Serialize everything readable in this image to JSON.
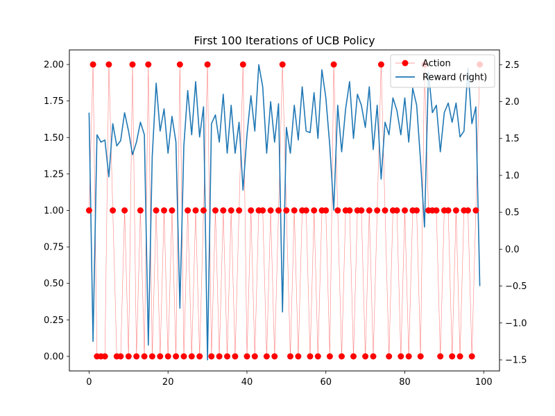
{
  "chart_data": {
    "type": "line",
    "title": "First 100 Iterations of UCB Policy",
    "xlabel": "",
    "ylabel_left": "",
    "ylabel_right": "",
    "xlim": [
      -5,
      104
    ],
    "ylim_left": [
      -0.1,
      2.1
    ],
    "ylim_right": [
      -1.65,
      2.7
    ],
    "x_ticks": [
      0,
      20,
      40,
      60,
      80,
      100
    ],
    "y_ticks_left": [
      0.0,
      0.25,
      0.5,
      0.75,
      1.0,
      1.25,
      1.5,
      1.75,
      2.0
    ],
    "y_ticks_left_labels": [
      "0.00",
      "0.25",
      "0.50",
      "0.75",
      "1.00",
      "1.25",
      "1.50",
      "1.75",
      "2.00"
    ],
    "y_ticks_right": [
      -1.5,
      -1.0,
      -0.5,
      0.0,
      0.5,
      1.0,
      1.5,
      2.0,
      2.5
    ],
    "y_ticks_right_labels": [
      "−1.5",
      "−1.0",
      "−0.5",
      "0.0",
      "0.5",
      "1.0",
      "1.5",
      "2.0",
      "2.5"
    ],
    "grid": false,
    "legend_position": "top-right",
    "series": [
      {
        "name": "Action",
        "axis": "left",
        "color": "#ff0000",
        "style": "line with circle markers",
        "x": [
          0,
          1,
          2,
          3,
          4,
          5,
          6,
          7,
          8,
          9,
          10,
          11,
          12,
          13,
          14,
          15,
          16,
          17,
          18,
          19,
          20,
          21,
          22,
          23,
          24,
          25,
          26,
          27,
          28,
          29,
          30,
          31,
          32,
          33,
          34,
          35,
          36,
          37,
          38,
          39,
          40,
          41,
          42,
          43,
          44,
          45,
          46,
          47,
          48,
          49,
          50,
          51,
          52,
          53,
          54,
          55,
          56,
          57,
          58,
          59,
          60,
          61,
          62,
          63,
          64,
          65,
          66,
          67,
          68,
          69,
          70,
          71,
          72,
          73,
          74,
          75,
          76,
          77,
          78,
          79,
          80,
          81,
          82,
          83,
          84,
          85,
          86,
          87,
          88,
          89,
          90,
          91,
          92,
          93,
          94,
          95,
          96,
          97,
          98,
          99
        ],
        "values": [
          1,
          2,
          0,
          0,
          0,
          2,
          1,
          0,
          0,
          1,
          0,
          2,
          0,
          1,
          0,
          2,
          0,
          1,
          0,
          1,
          0,
          1,
          0,
          2,
          0,
          1,
          0,
          1,
          0,
          1,
          2,
          0,
          1,
          0,
          1,
          0,
          1,
          0,
          1,
          2,
          0,
          1,
          0,
          1,
          1,
          0,
          1,
          0,
          1,
          2,
          1,
          0,
          1,
          0,
          1,
          1,
          0,
          1,
          0,
          1,
          1,
          0,
          2,
          1,
          0,
          1,
          1,
          0,
          1,
          1,
          0,
          1,
          0,
          1,
          2,
          1,
          0,
          1,
          1,
          0,
          1,
          0,
          1,
          1,
          0,
          2,
          1,
          1,
          1,
          0,
          1,
          1,
          0,
          1,
          0,
          1,
          1,
          0,
          1,
          2
        ]
      },
      {
        "name": "Reward (right)",
        "axis": "right",
        "color": "#1f77b4",
        "style": "line",
        "x": [
          0,
          1,
          2,
          3,
          4,
          5,
          6,
          7,
          8,
          9,
          10,
          11,
          12,
          13,
          14,
          15,
          16,
          17,
          18,
          19,
          20,
          21,
          22,
          23,
          24,
          25,
          26,
          27,
          28,
          29,
          30,
          31,
          32,
          33,
          34,
          35,
          36,
          37,
          38,
          39,
          40,
          41,
          42,
          43,
          44,
          45,
          46,
          47,
          48,
          49,
          50,
          51,
          52,
          53,
          54,
          55,
          56,
          57,
          58,
          59,
          60,
          61,
          62,
          63,
          64,
          65,
          66,
          67,
          68,
          69,
          70,
          71,
          72,
          73,
          74,
          75,
          76,
          77,
          78,
          79,
          80,
          81,
          82,
          83,
          84,
          85,
          86,
          87,
          88,
          89,
          90,
          91,
          92,
          93,
          94,
          95,
          96,
          97,
          98,
          99
        ],
        "values": [
          1.85,
          -1.25,
          1.55,
          1.45,
          1.48,
          0.98,
          1.7,
          1.4,
          1.47,
          1.85,
          1.6,
          1.28,
          1.45,
          1.72,
          1.55,
          -1.3,
          1.25,
          2.25,
          1.6,
          1.9,
          1.3,
          1.8,
          1.45,
          -0.8,
          1.4,
          2.15,
          1.55,
          2.27,
          1.52,
          1.93,
          -1.5,
          1.7,
          1.82,
          1.45,
          2.1,
          1.3,
          1.95,
          1.3,
          1.72,
          0.8,
          1.55,
          2.08,
          1.6,
          2.5,
          2.2,
          1.3,
          2.0,
          1.45,
          1.97,
          -0.85,
          1.65,
          1.3,
          1.95,
          1.48,
          2.2,
          1.6,
          1.58,
          2.12,
          1.5,
          2.43,
          2.05,
          1.4,
          0.53,
          1.95,
          1.32,
          1.9,
          2.27,
          1.5,
          2.1,
          1.95,
          1.65,
          2.2,
          1.35,
          1.95,
          0.95,
          1.72,
          1.55,
          2.05,
          1.88,
          1.55,
          2.05,
          1.45,
          2.18,
          1.95,
          1.2,
          0.3,
          2.4,
          1.85,
          1.95,
          1.32,
          1.85,
          1.98,
          1.72,
          1.98,
          1.52,
          1.6,
          2.45,
          1.7,
          1.93,
          -0.5
        ]
      }
    ]
  }
}
